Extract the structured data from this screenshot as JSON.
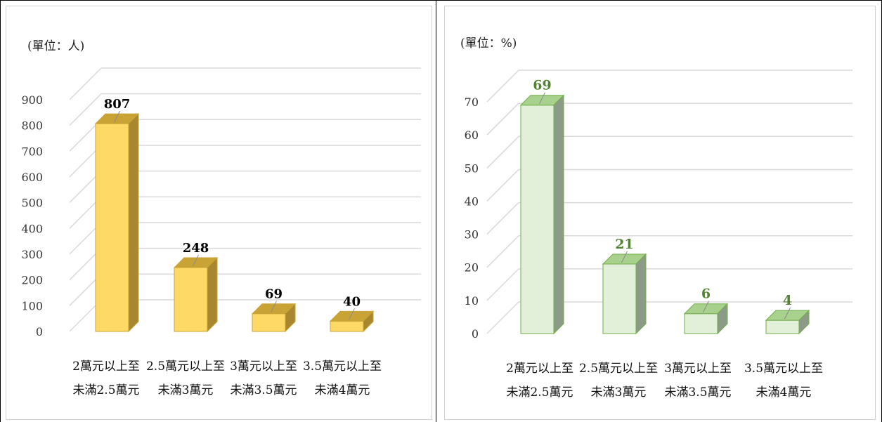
{
  "chart_data": [
    {
      "type": "bar",
      "unit_label": "(單位：人)",
      "categories": [
        [
          "2萬元以上至",
          "未滿2.5萬元"
        ],
        [
          "2.5萬元以上至",
          "未滿3萬元"
        ],
        [
          "3萬元以上至",
          "未滿3.5萬元"
        ],
        [
          "3.5萬元以上至",
          "未滿4萬元"
        ]
      ],
      "values": [
        807,
        248,
        69,
        40
      ],
      "data_labels": [
        "807",
        "248",
        "69",
        "40"
      ],
      "yticks": [
        "0",
        "100",
        "200",
        "300",
        "400",
        "500",
        "600",
        "700",
        "800",
        "900"
      ],
      "ylim": [
        0,
        900
      ],
      "grid": true,
      "colors": {
        "front": "#FFD966",
        "top": "#C9A336",
        "side": "#A8872E",
        "stroke": "#C9A336",
        "label": "#000000"
      }
    },
    {
      "type": "bar",
      "unit_label": "(單位：%)",
      "categories": [
        [
          "2萬元以上至",
          "未滿2.5萬元"
        ],
        [
          "2.5萬元以上至",
          "未滿3萬元"
        ],
        [
          "3萬元以上至",
          "未滿3.5萬元"
        ],
        [
          "3.5萬元以上至",
          "未滿4萬元"
        ]
      ],
      "values": [
        69,
        21,
        6,
        4
      ],
      "data_labels": [
        "69",
        "21",
        "6",
        "4"
      ],
      "yticks": [
        "0",
        "10",
        "20",
        "30",
        "40",
        "50",
        "60",
        "70"
      ],
      "ylim": [
        0,
        70
      ],
      "grid": true,
      "colors": {
        "front": "#E2F0D9",
        "top": "#A9D18E",
        "side": "#8C9A88",
        "stroke": "#70AD47",
        "label": "#548235"
      }
    }
  ]
}
